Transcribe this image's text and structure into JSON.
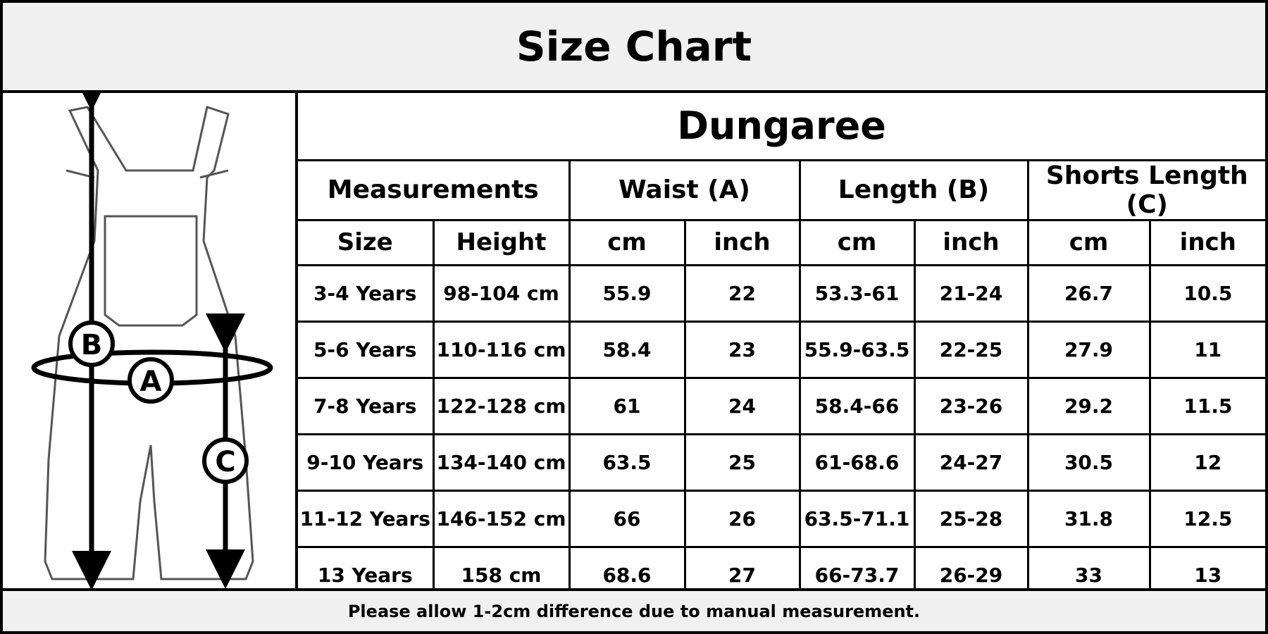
{
  "header": {
    "title": "Size Chart"
  },
  "diagram": {
    "labels": [
      "B",
      "A",
      "C"
    ]
  },
  "table": {
    "title": "Dungaree",
    "groups": [
      "Measurements",
      "Waist (A)",
      "Length (B)",
      "Shorts Length (C)"
    ],
    "columns": [
      "Size",
      "Height",
      "cm",
      "inch",
      "cm",
      "inch",
      "cm",
      "inch"
    ],
    "rows": [
      [
        "3-4 Years",
        "98-104 cm",
        "55.9",
        "22",
        "53.3-61",
        "21-24",
        "26.7",
        "10.5"
      ],
      [
        "5-6 Years",
        "110-116 cm",
        "58.4",
        "23",
        "55.9-63.5",
        "22-25",
        "27.9",
        "11"
      ],
      [
        "7-8 Years",
        "122-128 cm",
        "61",
        "24",
        "58.4-66",
        "23-26",
        "29.2",
        "11.5"
      ],
      [
        "9-10 Years",
        "134-140 cm",
        "63.5",
        "25",
        "61-68.6",
        "24-27",
        "30.5",
        "12"
      ],
      [
        "11-12 Years",
        "146-152 cm",
        "66",
        "26",
        "63.5-71.1",
        "25-28",
        "31.8",
        "12.5"
      ],
      [
        "13 Years",
        "158 cm",
        "68.6",
        "27",
        "66-73.7",
        "26-29",
        "33",
        "13"
      ]
    ]
  },
  "footer": {
    "note": "Please allow 1-2cm difference due to manual measurement."
  }
}
